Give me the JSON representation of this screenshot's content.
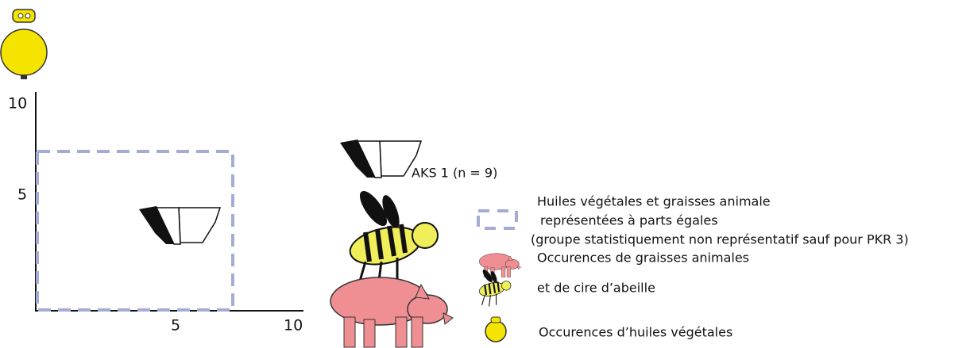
{
  "axes": {
    "y_ticks": [
      "10",
      "5"
    ],
    "x_ticks": [
      "5",
      "10"
    ]
  },
  "sample_label": "AKS 1 (n = 9)",
  "legend": [
    {
      "lines": [
        "Huiles végétales et graisses animale",
        "représentées à parts égales",
        "(groupe statistiquement non représentatif sauf pour PKR 3)"
      ]
    },
    {
      "lines": [
        "Occurences de graisses animales",
        "et de cire d’abeille"
      ]
    },
    {
      "lines": [
        "Occurences d’huiles végétales"
      ]
    }
  ]
}
